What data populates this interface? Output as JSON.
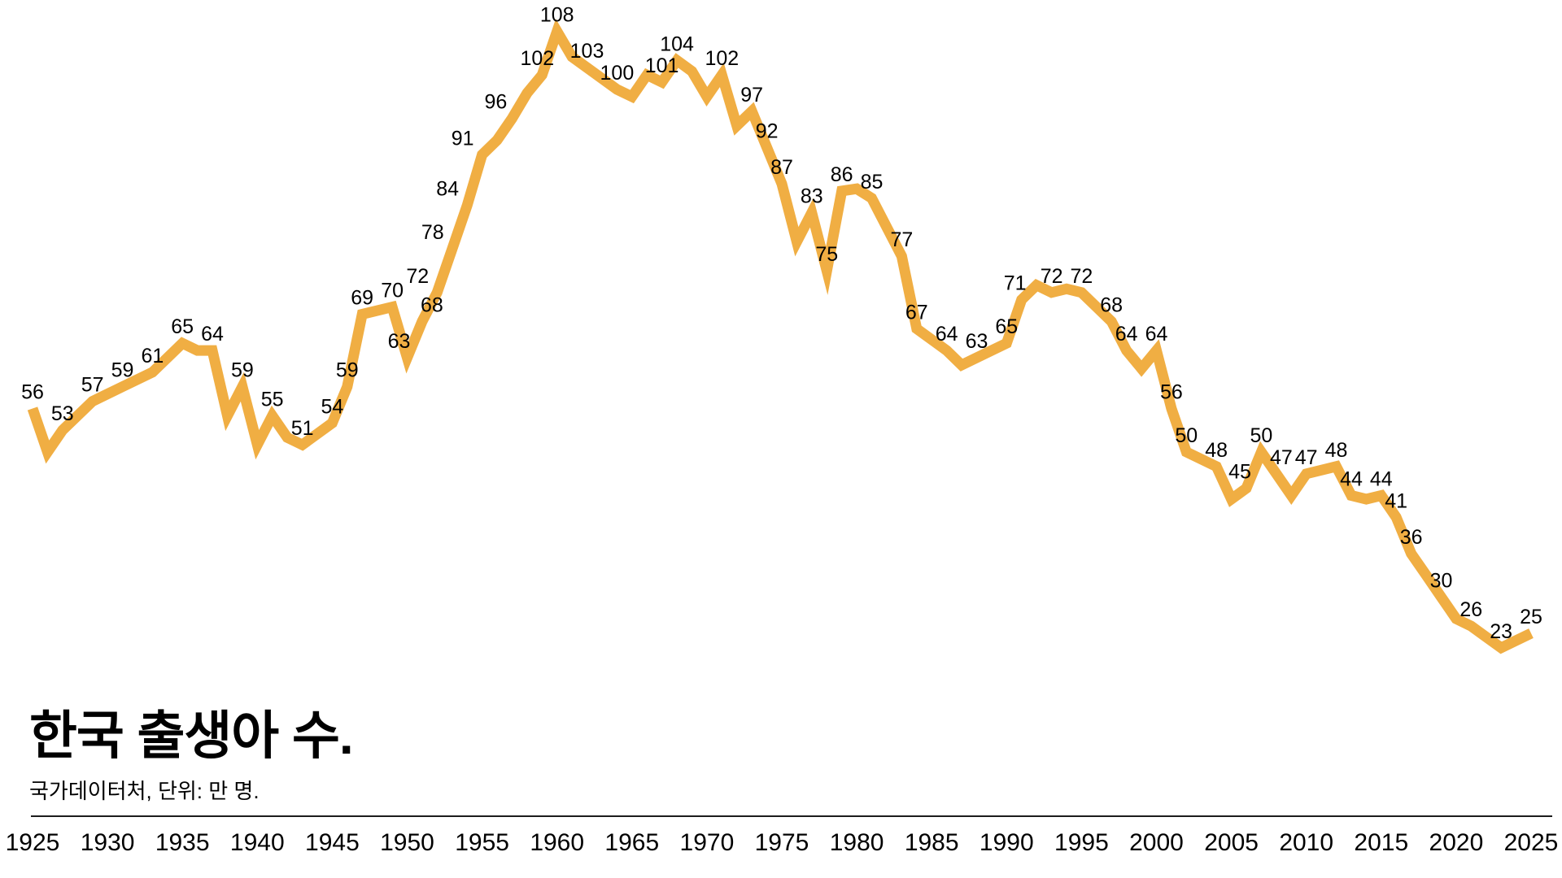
{
  "title": "한국 출생아 수.",
  "source": "국가데이터처, 단위: 만 명.",
  "chart_data": {
    "type": "line",
    "title": "한국 출생아 수.",
    "source_note": "국가데이터처, 단위: 만 명.",
    "unit": "만 명",
    "line_color": "#F0AE43",
    "label_color": "#000000",
    "x_range": [
      1925,
      2025
    ],
    "ylim": [
      0,
      112
    ],
    "grid": false,
    "x_tick_labels": [
      "1925",
      "1930",
      "1935",
      "1940",
      "1945",
      "1950",
      "1955",
      "1960",
      "1965",
      "1970",
      "1975",
      "1980",
      "1985",
      "1990",
      "1995",
      "2000",
      "2005",
      "2010",
      "2015",
      "2020",
      "2025"
    ],
    "points": [
      {
        "year": 1925,
        "value": 56,
        "label": "56"
      },
      {
        "year": 1926,
        "value": 50,
        "label": ""
      },
      {
        "year": 1927,
        "value": 53,
        "label": "53"
      },
      {
        "year": 1929,
        "value": 57,
        "label": "57"
      },
      {
        "year": 1931,
        "value": 59,
        "label": "59"
      },
      {
        "year": 1933,
        "value": 61,
        "label": "61"
      },
      {
        "year": 1935,
        "value": 65,
        "label": "65"
      },
      {
        "year": 1936,
        "value": 64,
        "label": ""
      },
      {
        "year": 1937,
        "value": 64,
        "label": "64"
      },
      {
        "year": 1938,
        "value": 55,
        "label": ""
      },
      {
        "year": 1939,
        "value": 59,
        "label": "59"
      },
      {
        "year": 1940,
        "value": 51,
        "label": ""
      },
      {
        "year": 1941,
        "value": 55,
        "label": "55"
      },
      {
        "year": 1942,
        "value": 52,
        "label": ""
      },
      {
        "year": 1943,
        "value": 51,
        "label": "51"
      },
      {
        "year": 1945,
        "value": 54,
        "label": "54"
      },
      {
        "year": 1946,
        "value": 59,
        "label": "59"
      },
      {
        "year": 1947,
        "value": 69,
        "label": "69"
      },
      {
        "year": 1949,
        "value": 70,
        "label": "70"
      },
      {
        "year": 1950,
        "value": 63,
        "label": "63",
        "dx": -10
      },
      {
        "year": 1951,
        "value": 68,
        "label": "68",
        "dx": 12
      },
      {
        "year": 1952,
        "value": 72,
        "label": "72",
        "dx": -24
      },
      {
        "year": 1953,
        "value": 78,
        "label": "78",
        "dx": -24
      },
      {
        "year": 1954,
        "value": 84,
        "label": "84",
        "dx": -24
      },
      {
        "year": 1955,
        "value": 91,
        "label": "91",
        "dx": -24
      },
      {
        "year": 1956,
        "value": 93,
        "label": ""
      },
      {
        "year": 1957,
        "value": 96,
        "label": "96",
        "dx": -20
      },
      {
        "year": 1958,
        "value": 99.5,
        "label": ""
      },
      {
        "year": 1959,
        "value": 102,
        "label": "102",
        "dx": -6
      },
      {
        "year": 1960,
        "value": 108,
        "label": "108"
      },
      {
        "year": 1961,
        "value": 104.5,
        "label": ""
      },
      {
        "year": 1962,
        "value": 103,
        "label": "103"
      },
      {
        "year": 1964,
        "value": 100,
        "label": "100"
      },
      {
        "year": 1965,
        "value": 99,
        "label": ""
      },
      {
        "year": 1966,
        "value": 102,
        "label": ""
      },
      {
        "year": 1967,
        "value": 101,
        "label": "101"
      },
      {
        "year": 1968,
        "value": 104,
        "label": "104"
      },
      {
        "year": 1969,
        "value": 102.5,
        "label": ""
      },
      {
        "year": 1970,
        "value": 99,
        "label": ""
      },
      {
        "year": 1971,
        "value": 102,
        "label": "102"
      },
      {
        "year": 1972,
        "value": 95,
        "label": ""
      },
      {
        "year": 1973,
        "value": 97,
        "label": "97"
      },
      {
        "year": 1974,
        "value": 92,
        "label": "92"
      },
      {
        "year": 1975,
        "value": 87,
        "label": "87"
      },
      {
        "year": 1976,
        "value": 79,
        "label": ""
      },
      {
        "year": 1977,
        "value": 83,
        "label": "83"
      },
      {
        "year": 1978,
        "value": 75,
        "label": "75"
      },
      {
        "year": 1979,
        "value": 86,
        "label": "86"
      },
      {
        "year": 1980,
        "value": 86.3,
        "label": ""
      },
      {
        "year": 1981,
        "value": 85,
        "label": "85"
      },
      {
        "year": 1983,
        "value": 77,
        "label": "77"
      },
      {
        "year": 1984,
        "value": 67,
        "label": "67"
      },
      {
        "year": 1986,
        "value": 64,
        "label": "64"
      },
      {
        "year": 1987,
        "value": 62,
        "label": ""
      },
      {
        "year": 1988,
        "value": 63,
        "label": "63"
      },
      {
        "year": 1990,
        "value": 65,
        "label": "65"
      },
      {
        "year": 1991,
        "value": 71,
        "label": "71",
        "dx": -8
      },
      {
        "year": 1992,
        "value": 73,
        "label": ""
      },
      {
        "year": 1993,
        "value": 72,
        "label": "72"
      },
      {
        "year": 1994,
        "value": 72.5,
        "label": ""
      },
      {
        "year": 1995,
        "value": 72,
        "label": "72"
      },
      {
        "year": 1997,
        "value": 68,
        "label": "68"
      },
      {
        "year": 1998,
        "value": 64,
        "label": "64"
      },
      {
        "year": 1999,
        "value": 61.5,
        "label": ""
      },
      {
        "year": 2000,
        "value": 64,
        "label": "64"
      },
      {
        "year": 2001,
        "value": 56,
        "label": "56"
      },
      {
        "year": 2002,
        "value": 50,
        "label": "50"
      },
      {
        "year": 2004,
        "value": 48,
        "label": "48"
      },
      {
        "year": 2005,
        "value": 43.5,
        "label": ""
      },
      {
        "year": 2006,
        "value": 45,
        "label": "45",
        "dx": -8
      },
      {
        "year": 2007,
        "value": 50,
        "label": "50"
      },
      {
        "year": 2008,
        "value": 47,
        "label": "47",
        "dx": 6
      },
      {
        "year": 2009,
        "value": 44,
        "label": ""
      },
      {
        "year": 2010,
        "value": 47,
        "label": "47"
      },
      {
        "year": 2012,
        "value": 48,
        "label": "48"
      },
      {
        "year": 2013,
        "value": 44,
        "label": "44"
      },
      {
        "year": 2014,
        "value": 43.5,
        "label": ""
      },
      {
        "year": 2015,
        "value": 44,
        "label": "44"
      },
      {
        "year": 2016,
        "value": 41,
        "label": "41"
      },
      {
        "year": 2017,
        "value": 36,
        "label": "36"
      },
      {
        "year": 2018,
        "value": 33,
        "label": ""
      },
      {
        "year": 2019,
        "value": 30,
        "label": "30"
      },
      {
        "year": 2020,
        "value": 27,
        "label": ""
      },
      {
        "year": 2021,
        "value": 26,
        "label": "26"
      },
      {
        "year": 2022,
        "value": 24.5,
        "label": ""
      },
      {
        "year": 2023,
        "value": 23,
        "label": "23"
      },
      {
        "year": 2024,
        "value": 24,
        "label": ""
      },
      {
        "year": 2025,
        "value": 25,
        "label": "25"
      }
    ]
  }
}
